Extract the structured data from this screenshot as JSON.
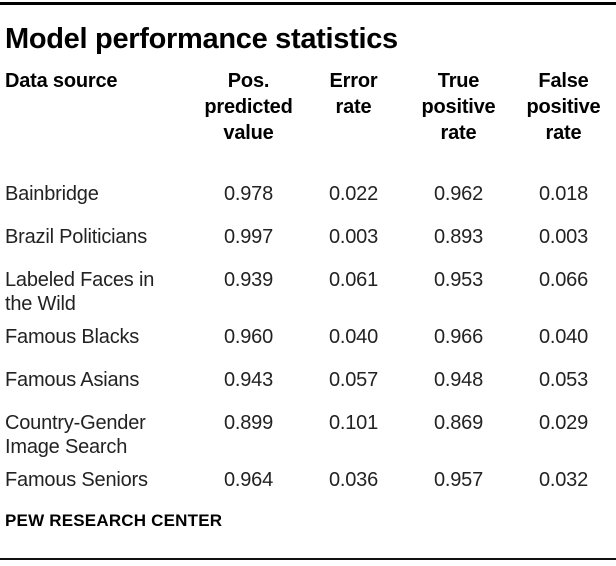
{
  "title": "Model performance statistics",
  "table": {
    "display_headers": [
      "Data source",
      "Pos.\npredicted\nvalue",
      "Error\nrate",
      "True\npositive\nrate",
      "False\npositive\nrate"
    ],
    "rows": [
      [
        "Bainbridge",
        "0.978",
        "0.022",
        "0.962",
        "0.018"
      ],
      [
        "Brazil Politicians",
        "0.997",
        "0.003",
        "0.893",
        "0.003"
      ],
      [
        "Labeled Faces in the Wild",
        "0.939",
        "0.061",
        "0.953",
        "0.066"
      ],
      [
        "Famous Blacks",
        "0.960",
        "0.040",
        "0.966",
        "0.040"
      ],
      [
        "Famous Asians",
        "0.943",
        "0.057",
        "0.948",
        "0.053"
      ],
      [
        "Country-Gender Image Search",
        "0.899",
        "0.101",
        "0.869",
        "0.029"
      ],
      [
        "Famous Seniors",
        "0.964",
        "0.036",
        "0.957",
        "0.032"
      ]
    ]
  },
  "footer": "PEW RESEARCH CENTER",
  "colors": {
    "rule": "#000000",
    "text": "#222222"
  },
  "chart_data": {
    "type": "table",
    "title": "Model performance statistics",
    "columns": [
      "Data source",
      "Pos. predicted value",
      "Error rate",
      "True positive rate",
      "False positive rate"
    ],
    "rows": [
      {
        "data_source": "Bainbridge",
        "pos_predicted_value": 0.978,
        "error_rate": 0.022,
        "true_positive_rate": 0.962,
        "false_positive_rate": 0.018
      },
      {
        "data_source": "Brazil Politicians",
        "pos_predicted_value": 0.997,
        "error_rate": 0.003,
        "true_positive_rate": 0.893,
        "false_positive_rate": 0.003
      },
      {
        "data_source": "Labeled Faces in the Wild",
        "pos_predicted_value": 0.939,
        "error_rate": 0.061,
        "true_positive_rate": 0.953,
        "false_positive_rate": 0.066
      },
      {
        "data_source": "Famous Blacks",
        "pos_predicted_value": 0.96,
        "error_rate": 0.04,
        "true_positive_rate": 0.966,
        "false_positive_rate": 0.04
      },
      {
        "data_source": "Famous Asians",
        "pos_predicted_value": 0.943,
        "error_rate": 0.057,
        "true_positive_rate": 0.948,
        "false_positive_rate": 0.053
      },
      {
        "data_source": "Country-Gender Image Search",
        "pos_predicted_value": 0.899,
        "error_rate": 0.101,
        "true_positive_rate": 0.869,
        "false_positive_rate": 0.029
      },
      {
        "data_source": "Famous Seniors",
        "pos_predicted_value": 0.964,
        "error_rate": 0.036,
        "true_positive_rate": 0.957,
        "false_positive_rate": 0.032
      }
    ],
    "source_label": "PEW RESEARCH CENTER"
  }
}
